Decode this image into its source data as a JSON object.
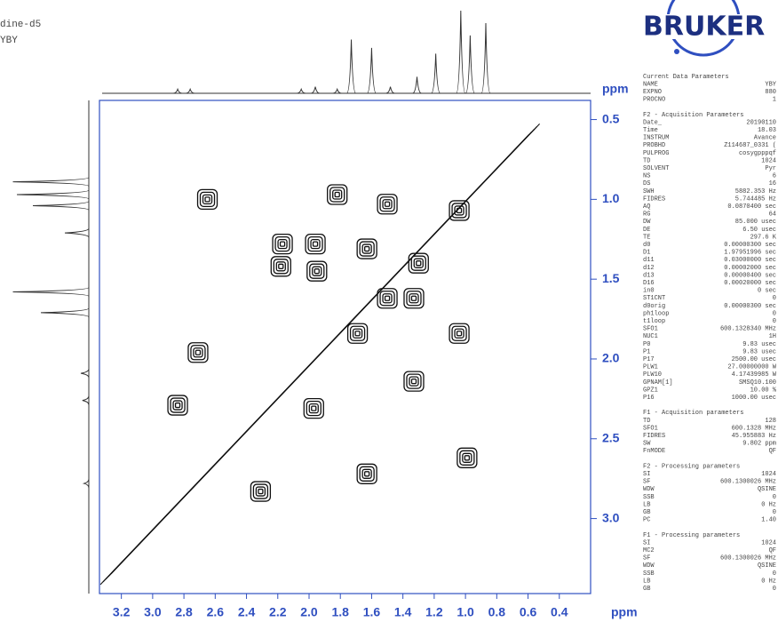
{
  "chart_data": {
    "type": "nmr2d",
    "sample_label": "dine-d5",
    "user_label": "YBY",
    "logo": "BRUKER",
    "x_label": "ppm",
    "y_label": "ppm",
    "xlim": [
      3.34,
      0.2
    ],
    "ylim": [
      0.38,
      3.47
    ],
    "xticks": [
      {
        "value": 3.2,
        "label": "3.2"
      },
      {
        "value": 3.0,
        "label": "3.0"
      },
      {
        "value": 2.8,
        "label": "2.8"
      },
      {
        "value": 2.6,
        "label": "2.6"
      },
      {
        "value": 2.4,
        "label": "2.4"
      },
      {
        "value": 2.2,
        "label": "2.2"
      },
      {
        "value": 2.0,
        "label": "2.0"
      },
      {
        "value": 1.8,
        "label": "1.8"
      },
      {
        "value": 1.6,
        "label": "1.6"
      },
      {
        "value": 1.4,
        "label": "1.4"
      },
      {
        "value": 1.2,
        "label": "1.2"
      },
      {
        "value": 1.0,
        "label": "1.0"
      },
      {
        "value": 0.8,
        "label": "0.8"
      },
      {
        "value": 0.6,
        "label": "0.6"
      },
      {
        "value": 0.4,
        "label": "0.4"
      }
    ],
    "yticks": [
      {
        "value": 0.5,
        "label": "0.5"
      },
      {
        "value": 1.0,
        "label": "1.0"
      },
      {
        "value": 1.5,
        "label": "1.5"
      },
      {
        "value": 2.0,
        "label": "2.0"
      },
      {
        "value": 2.5,
        "label": "2.5"
      },
      {
        "value": 3.0,
        "label": "3.0"
      }
    ],
    "color": "#111111",
    "axis_color": "#2f4fc0",
    "diagonal": {
      "x": [
        3.3,
        0.56
      ],
      "y": [
        3.38,
        0.56
      ]
    },
    "peaks": [
      {
        "x": 2.65,
        "y": 1.0
      },
      {
        "x": 2.84,
        "y": 2.29
      },
      {
        "x": 2.31,
        "y": 2.83
      },
      {
        "x": 1.69,
        "y": 1.84
      },
      {
        "x": 0.99,
        "y": 2.62
      },
      {
        "x": 1.82,
        "y": 0.97
      },
      {
        "x": 1.5,
        "y": 1.03
      },
      {
        "x": 2.17,
        "y": 1.28
      },
      {
        "x": 1.96,
        "y": 1.28
      },
      {
        "x": 1.63,
        "y": 1.31
      },
      {
        "x": 2.18,
        "y": 1.42
      },
      {
        "x": 1.95,
        "y": 1.45
      },
      {
        "x": 1.5,
        "y": 1.62
      },
      {
        "x": 1.33,
        "y": 1.62
      },
      {
        "x": 1.3,
        "y": 1.4
      },
      {
        "x": 1.04,
        "y": 1.84
      },
      {
        "x": 1.33,
        "y": 2.14
      },
      {
        "x": 1.97,
        "y": 2.31
      },
      {
        "x": 2.71,
        "y": 1.96
      },
      {
        "x": 1.63,
        "y": 2.72
      },
      {
        "x": 1.04,
        "y": 1.07
      }
    ],
    "top_projection": {
      "x": [
        2.84,
        2.76,
        2.05,
        1.96,
        1.82,
        1.73,
        1.6,
        1.48,
        1.31,
        1.19,
        1.03,
        0.97,
        0.87
      ],
      "values": [
        5,
        5,
        5,
        8,
        5,
        65,
        55,
        8,
        20,
        48,
        100,
        70,
        85
      ]
    },
    "left_projection": {
      "y": [
        0.89,
        0.97,
        1.04,
        1.21,
        1.58,
        1.71,
        2.09,
        2.26,
        2.78
      ],
      "values": [
        95,
        90,
        70,
        30,
        95,
        60,
        10,
        8,
        6
      ]
    },
    "parameters": [
      {
        "title": "Current Data Parameters",
        "rows": [
          [
            "NAME",
            "YBY"
          ],
          [
            "EXPNO",
            "880"
          ],
          [
            "PROCNO",
            "1"
          ]
        ]
      },
      {
        "title": "F2 - Acquisition Parameters",
        "rows": [
          [
            "Date_",
            "20190110"
          ],
          [
            "Time",
            "18.03"
          ],
          [
            "INSTRUM",
            "Avance"
          ],
          [
            "PROBHD",
            "Z114687_0331 ("
          ],
          [
            "PULPROG",
            "cosygpppqf"
          ],
          [
            "TD",
            "1024"
          ],
          [
            "SOLVENT",
            "Pyr"
          ],
          [
            "NS",
            "6"
          ],
          [
            "DS",
            "16"
          ],
          [
            "SWH",
            "5882.353 Hz"
          ],
          [
            "FIDRES",
            "5.744485 Hz"
          ],
          [
            "AQ",
            "0.0870400 sec"
          ],
          [
            "RG",
            "64"
          ],
          [
            "DW",
            "85.000 usec"
          ],
          [
            "DE",
            "6.50 usec"
          ],
          [
            "TE",
            "297.6 K"
          ],
          [
            "d0",
            "0.00000300 sec"
          ],
          [
            "D1",
            "1.97951996 sec"
          ],
          [
            "d11",
            "0.03000000 sec"
          ],
          [
            "d12",
            "0.00002000 sec"
          ],
          [
            "d13",
            "0.00000400 sec"
          ],
          [
            "D16",
            "0.00020000 sec"
          ],
          [
            "in0",
            "0 sec"
          ],
          [
            "ST1CNT",
            "0"
          ],
          [
            "d0orig",
            "0.00000300 sec"
          ],
          [
            "ph1loop",
            "0"
          ],
          [
            "t1loop",
            "0"
          ],
          [
            "SFO1",
            "600.1328340 MHz"
          ],
          [
            "NUC1",
            "1H"
          ],
          [
            "P0",
            "9.83 usec"
          ],
          [
            "P1",
            "9.83 usec"
          ],
          [
            "P17",
            "2500.00 usec"
          ],
          [
            "PLW1",
            "27.00000000 W"
          ],
          [
            "PLW10",
            "4.17439985 W"
          ],
          [
            "GPNAM[1]",
            "SMSQ10.100"
          ],
          [
            "GPZ1",
            "10.00 %"
          ],
          [
            "P16",
            "1000.00 usec"
          ]
        ]
      },
      {
        "title": "F1 - Acquisition parameters",
        "rows": [
          [
            "TD",
            "128"
          ],
          [
            "SFO1",
            "600.1328 MHz"
          ],
          [
            "FIDRES",
            "45.955883 Hz"
          ],
          [
            "SW",
            "9.802 ppm"
          ],
          [
            "FnMODE",
            "QF"
          ]
        ]
      },
      {
        "title": "F2 - Processing parameters",
        "rows": [
          [
            "SI",
            "1024"
          ],
          [
            "SF",
            "600.1300026 MHz"
          ],
          [
            "WDW",
            "QSINE"
          ],
          [
            "SSB",
            "0"
          ],
          [
            "LB",
            "0 Hz"
          ],
          [
            "GB",
            "0"
          ],
          [
            "PC",
            "1.40"
          ]
        ]
      },
      {
        "title": "F1 - Processing parameters",
        "rows": [
          [
            "SI",
            "1024"
          ],
          [
            "MC2",
            "QF"
          ],
          [
            "SF",
            "600.1300026 MHz"
          ],
          [
            "WDW",
            "QSINE"
          ],
          [
            "SSB",
            "0"
          ],
          [
            "LB",
            "0 Hz"
          ],
          [
            "GB",
            "0"
          ]
        ]
      }
    ]
  }
}
